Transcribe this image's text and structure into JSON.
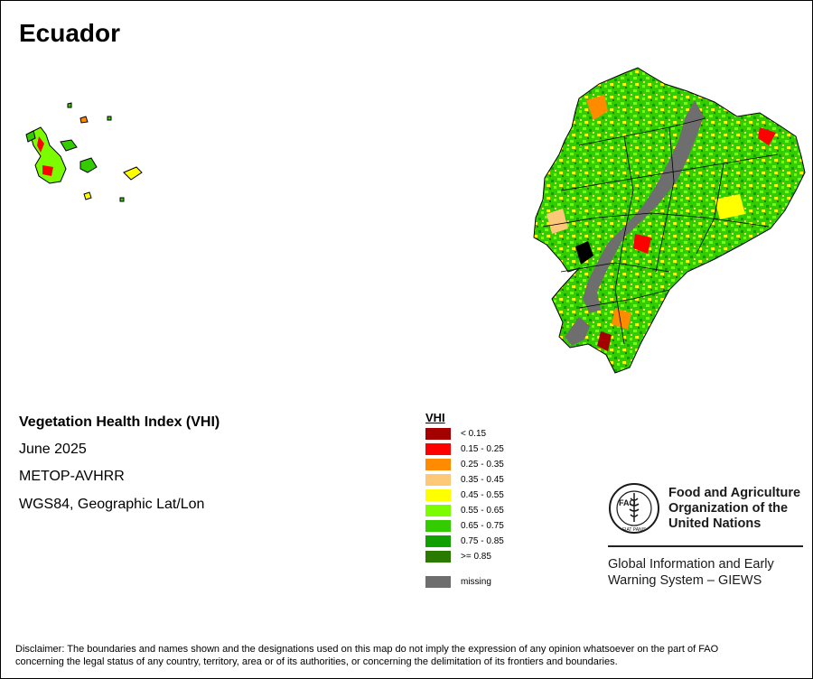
{
  "map": {
    "title": "Ecuador"
  },
  "info": {
    "index_name": "Vegetation Health Index (VHI)",
    "period": "June 2025",
    "sensor": "METOP-AVHRR",
    "projection": "WGS84, Geographic Lat/Lon"
  },
  "legend": {
    "title": "VHI",
    "classes": [
      {
        "label": "< 0.15",
        "color": "#a50000"
      },
      {
        "label": "0.15 - 0.25",
        "color": "#ff0000"
      },
      {
        "label": "0.25 - 0.35",
        "color": "#ff8c00"
      },
      {
        "label": "0.35 - 0.45",
        "color": "#fdc878"
      },
      {
        "label": "0.45 - 0.55",
        "color": "#ffff00"
      },
      {
        "label": "0.55 - 0.65",
        "color": "#7cfc00"
      },
      {
        "label": "0.65 - 0.75",
        "color": "#33cc00"
      },
      {
        "label": "0.75 - 0.85",
        "color": "#11a000"
      },
      {
        "label": ">= 0.85",
        "color": "#2b7a00"
      }
    ],
    "missing": {
      "label": "missing",
      "color": "#6e6e6e"
    }
  },
  "logo": {
    "org_line1": "Food and Agriculture",
    "org_line2": "Organization of the",
    "org_line3": "United Nations",
    "seal_text": "FAO",
    "seal_motto": "FIAT PANIS"
  },
  "giews": {
    "line1": "Global Information and Early",
    "line2": "Warning System – GIEWS"
  },
  "disclaimer": {
    "line1": "Disclaimer: The boundaries and names shown and the designations used on this map do not imply the expression of any opinion whatsoever on the part of FAO",
    "line2": "concerning the legal status of any country, territory, area or of its authorities, or concerning the delimitation of its frontiers and boundaries."
  }
}
